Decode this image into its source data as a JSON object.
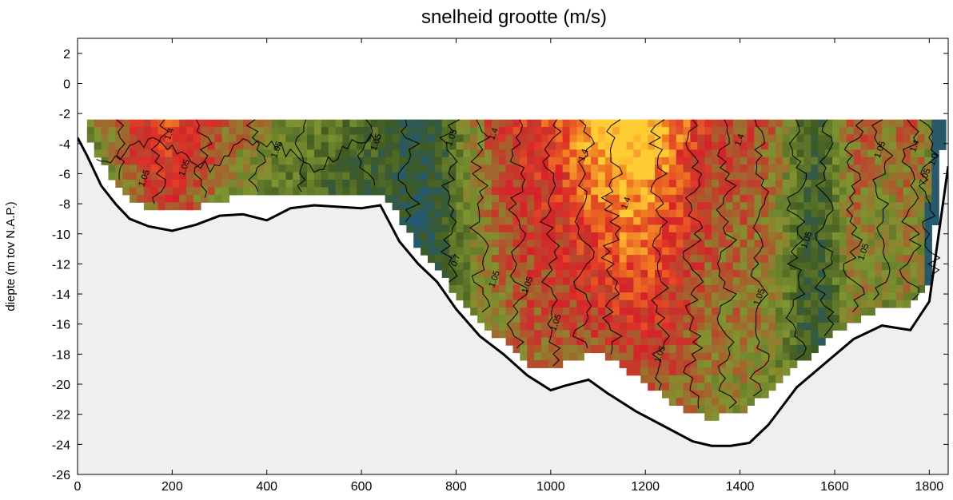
{
  "chart_data": {
    "type": "heatmap",
    "title": "snelheid grootte (m/s)",
    "xlabel": "",
    "ylabel": "diepte (m tov N.A.P.)",
    "xlim": [
      0,
      1840
    ],
    "ylim": [
      -26,
      3
    ],
    "xticks": [
      0,
      200,
      400,
      600,
      800,
      1000,
      1200,
      1400,
      1600,
      1800
    ],
    "yticks": [
      2,
      0,
      -2,
      -4,
      -6,
      -8,
      -10,
      -12,
      -14,
      -16,
      -18,
      -20,
      -22,
      -24,
      -26
    ],
    "grid": false,
    "legend": "none",
    "water_surface": -2.4,
    "colors": {
      "land": "#efefef",
      "low": "#1e5a80",
      "dark_green": "#3f5a22",
      "olive": "#7f9530",
      "red": "#d8202a",
      "orange": "#f07a22",
      "yellow": "#ffcc33"
    },
    "bed_profile": {
      "x": [
        0,
        20,
        50,
        80,
        110,
        150,
        200,
        250,
        300,
        350,
        400,
        450,
        500,
        550,
        600,
        640,
        680,
        720,
        760,
        800,
        850,
        900,
        950,
        1000,
        1030,
        1080,
        1120,
        1180,
        1240,
        1300,
        1340,
        1380,
        1420,
        1460,
        1520,
        1580,
        1640,
        1700,
        1760,
        1800,
        1820,
        1840
      ],
      "y": [
        -3.6,
        -4.8,
        -6.8,
        -8.0,
        -9.0,
        -9.5,
        -9.8,
        -9.4,
        -8.8,
        -8.7,
        -9.1,
        -8.3,
        -8.1,
        -8.2,
        -8.3,
        -8.1,
        -10.5,
        -12.0,
        -13.2,
        -15.0,
        -16.8,
        -18.0,
        -19.4,
        -20.4,
        -20.1,
        -19.7,
        -20.6,
        -21.8,
        -22.8,
        -23.8,
        -24.1,
        -24.1,
        -23.9,
        -22.7,
        -20.2,
        -18.6,
        -17.0,
        -16.1,
        -16.4,
        -14.5,
        -10.0,
        -5.5
      ]
    },
    "data_bottom": {
      "x": [
        20,
        60,
        100,
        150,
        200,
        250,
        300,
        350,
        400,
        450,
        500,
        550,
        600,
        640,
        680,
        720,
        760,
        800,
        850,
        900,
        950,
        1000,
        1050,
        1100,
        1150,
        1200,
        1250,
        1300,
        1350,
        1400,
        1450,
        1500,
        1550,
        1600,
        1650,
        1700,
        1750,
        1800,
        1830
      ],
      "y": [
        -3.2,
        -5.5,
        -7.2,
        -8.0,
        -8.4,
        -8.0,
        -7.5,
        -7.3,
        -7.2,
        -7.3,
        -7.2,
        -7.2,
        -7.1,
        -7.0,
        -8.6,
        -10.6,
        -12.2,
        -13.8,
        -15.6,
        -16.9,
        -18.4,
        -18.8,
        -18.1,
        -17.6,
        -18.5,
        -19.8,
        -20.8,
        -21.8,
        -22.0,
        -21.6,
        -20.6,
        -19.0,
        -17.8,
        -16.4,
        -15.4,
        -14.8,
        -14.8,
        -13.2,
        -3.5
      ]
    },
    "contour_labels": [
      {
        "text": "1.4",
        "x": 195,
        "y": -3.8
      },
      {
        "text": "1.05",
        "x": 225,
        "y": -6.2
      },
      {
        "text": "1.05",
        "x": 140,
        "y": -6.9
      },
      {
        "text": "1.05",
        "x": 420,
        "y": -5.0
      },
      {
        "text": "1.05",
        "x": 630,
        "y": -4.5
      },
      {
        "text": "1.05",
        "x": 790,
        "y": -4.2
      },
      {
        "text": "1.4",
        "x": 880,
        "y": -3.8
      },
      {
        "text": "1.4",
        "x": 1160,
        "y": -8.4
      },
      {
        "text": "1.4",
        "x": 1070,
        "y": -5.2
      },
      {
        "text": "1.4",
        "x": 1400,
        "y": -4.2
      },
      {
        "text": "1.05",
        "x": 1540,
        "y": -11.0
      },
      {
        "text": "1.05",
        "x": 1660,
        "y": -11.8
      },
      {
        "text": "1.05",
        "x": 1695,
        "y": -5.0
      },
      {
        "text": "1.4",
        "x": 1770,
        "y": -4.6
      },
      {
        "text": "7.05",
        "x": 1790,
        "y": -6.8
      },
      {
        "text": "1.0",
        "x": 1810,
        "y": -5.5
      },
      {
        "text": "1.05",
        "x": 880,
        "y": -13.6
      },
      {
        "text": "0.7",
        "x": 800,
        "y": -12.2
      },
      {
        "text": "1.05",
        "x": 950,
        "y": -14.0
      },
      {
        "text": "1.05",
        "x": 1010,
        "y": -16.5
      },
      {
        "text": "1.05",
        "x": 1230,
        "y": -18.6
      },
      {
        "text": "1.05",
        "x": 1440,
        "y": -14.8
      }
    ]
  }
}
